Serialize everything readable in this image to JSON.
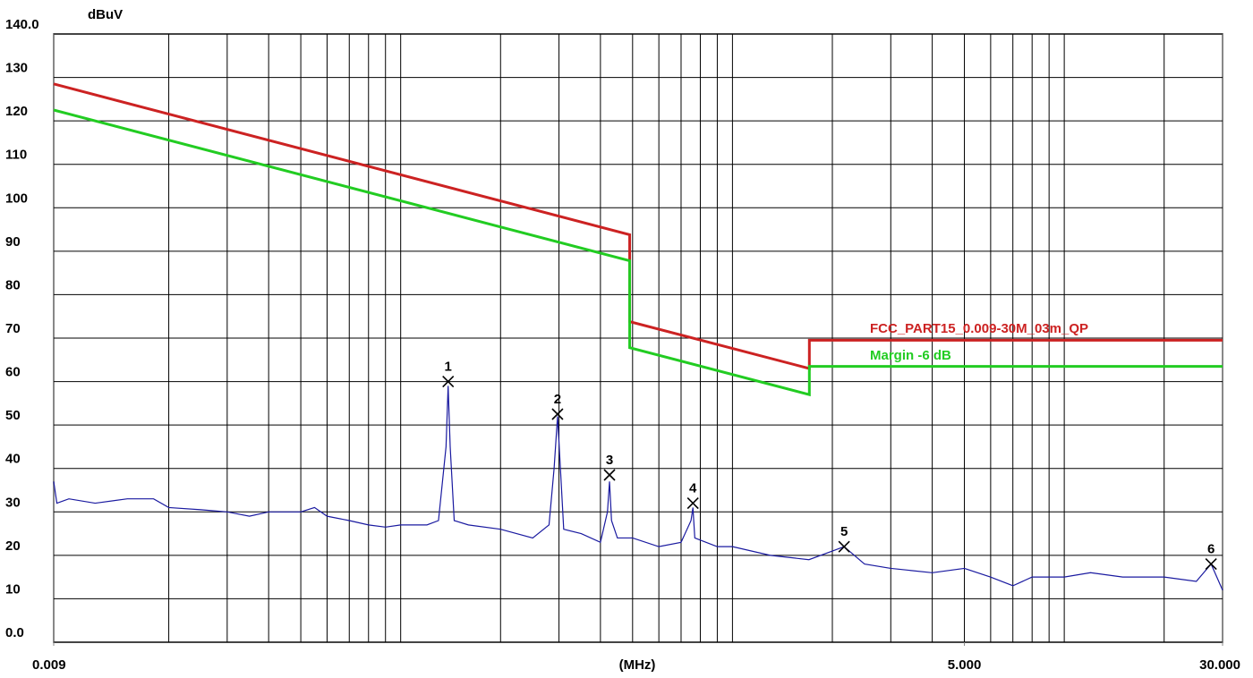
{
  "chart_data": {
    "type": "line",
    "y_unit": "dBuV",
    "x_label": "(MHz)",
    "log_x": true,
    "grid": true,
    "xlim": [
      0.009,
      30
    ],
    "xticks": [
      {
        "value": 0.009,
        "label": "0.009"
      },
      {
        "value": 5,
        "label": "5.000"
      },
      {
        "value": 30,
        "label": "30.000"
      }
    ],
    "xgrid": [
      0.02,
      0.03,
      0.04,
      0.05,
      0.06,
      0.07,
      0.08,
      0.09,
      0.1,
      0.2,
      0.3,
      0.4,
      0.5,
      0.6,
      0.7,
      0.8,
      0.9,
      1,
      2,
      3,
      4,
      5,
      6,
      7,
      8,
      9,
      10,
      20
    ],
    "ylim": [
      0,
      140
    ],
    "yticks": [
      {
        "value": 0,
        "label": "0.0"
      },
      10,
      20,
      30,
      40,
      50,
      60,
      70,
      80,
      90,
      100,
      110,
      120,
      130,
      {
        "value": 140,
        "label": "140.0"
      }
    ],
    "series": [
      {
        "name": "FCC_PART15_0.009-30M_03m_QP",
        "color": "#cc2222",
        "legend": true,
        "x": [
          0.009,
          0.49,
          0.49,
          1.705,
          1.705,
          30
        ],
        "values": [
          128.5,
          93.8,
          73.8,
          63,
          69.5,
          69.5
        ]
      },
      {
        "name": "Margin -6 dB",
        "color": "#22cc22",
        "legend": true,
        "x": [
          0.009,
          0.49,
          0.49,
          1.705,
          1.705,
          30
        ],
        "values": [
          122.5,
          87.8,
          67.8,
          57,
          63.5,
          63.5
        ]
      },
      {
        "color": "#1a1aa0",
        "legend": false,
        "x": [
          0.009,
          0.0092,
          0.01,
          0.012,
          0.015,
          0.018,
          0.02,
          0.025,
          0.03,
          0.035,
          0.04,
          0.045,
          0.05,
          0.055,
          0.06,
          0.07,
          0.08,
          0.09,
          0.1,
          0.12,
          0.13,
          0.137,
          0.139,
          0.141,
          0.145,
          0.16,
          0.2,
          0.25,
          0.28,
          0.29,
          0.297,
          0.303,
          0.31,
          0.35,
          0.4,
          0.42,
          0.426,
          0.432,
          0.45,
          0.5,
          0.6,
          0.7,
          0.75,
          0.76,
          0.77,
          0.9,
          1.0,
          1.3,
          1.7,
          2.0,
          2.17,
          2.5,
          3,
          4,
          5,
          6,
          7,
          8,
          10,
          12,
          15,
          20,
          25,
          27.7,
          30
        ],
        "values": [
          37,
          32,
          33,
          32,
          33,
          33,
          31,
          30.5,
          30,
          29,
          30,
          30,
          30,
          31,
          29,
          28,
          27,
          26.5,
          27,
          27,
          28,
          45,
          59,
          45,
          28,
          27,
          26,
          24,
          27,
          40,
          52,
          40,
          26,
          25,
          23,
          30,
          37,
          28,
          24,
          24,
          22,
          23,
          28,
          31,
          24,
          22,
          22,
          20,
          19,
          21,
          22,
          18,
          17,
          16,
          17,
          15,
          13,
          15,
          15,
          16,
          15,
          15,
          14,
          18,
          12
        ]
      }
    ],
    "markers": {
      "labels": [
        "1",
        "2",
        "3",
        "4",
        "5",
        "6"
      ],
      "x": [
        0.139,
        0.297,
        0.426,
        0.76,
        2.17,
        27.7
      ],
      "values": [
        60,
        52.5,
        38.5,
        32,
        22,
        18
      ]
    }
  }
}
